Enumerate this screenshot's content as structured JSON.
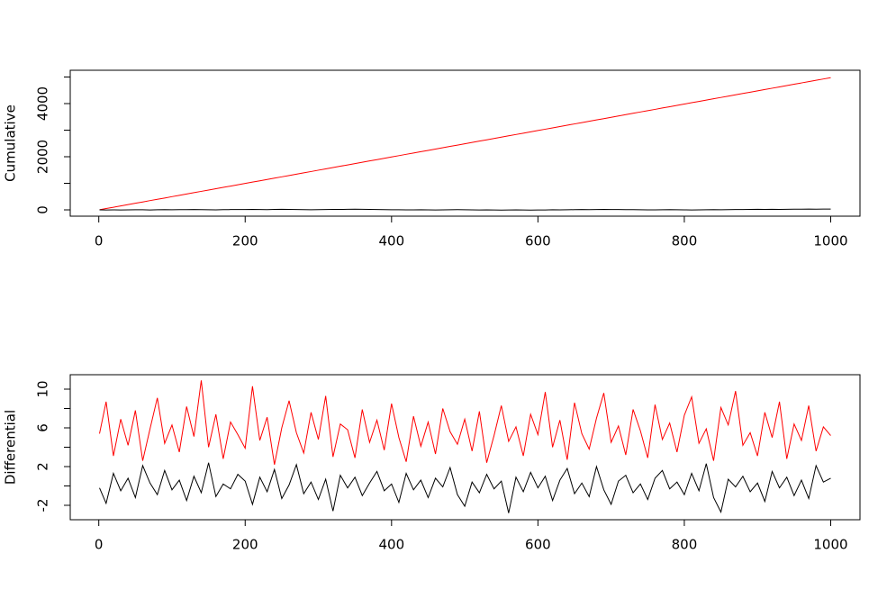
{
  "chart_data": [
    {
      "type": "line",
      "ylabel": "Cumulative",
      "x": [
        1,
        10,
        20,
        30,
        40,
        50,
        60,
        70,
        80,
        90,
        100,
        110,
        120,
        130,
        140,
        150,
        160,
        170,
        180,
        190,
        200,
        210,
        220,
        230,
        240,
        250,
        260,
        270,
        280,
        290,
        300,
        310,
        320,
        330,
        340,
        350,
        360,
        370,
        380,
        390,
        400,
        410,
        420,
        430,
        440,
        450,
        460,
        470,
        480,
        490,
        500,
        510,
        520,
        530,
        540,
        550,
        560,
        570,
        580,
        590,
        600,
        610,
        620,
        630,
        640,
        650,
        660,
        670,
        680,
        690,
        700,
        710,
        720,
        730,
        740,
        750,
        760,
        770,
        780,
        790,
        800,
        810,
        820,
        830,
        840,
        850,
        860,
        870,
        880,
        890,
        900,
        910,
        920,
        930,
        940,
        950,
        960,
        970,
        980,
        990,
        1000
      ],
      "series": [
        {
          "color": "#ff0000",
          "values": [
            5,
            50,
            99,
            148,
            199,
            249,
            297,
            350,
            399,
            447,
            498,
            547,
            596,
            647,
            697,
            745,
            796,
            846,
            895,
            944,
            995,
            1046,
            1094,
            1145,
            1194,
            1244,
            1293,
            1343,
            1393,
            1443,
            1494,
            1542,
            1593,
            1643,
            1692,
            1741,
            1793,
            1842,
            1891,
            1942,
            1991,
            2040,
            2091,
            2141,
            2190,
            2239,
            2290,
            2340,
            2389,
            2438,
            2489,
            2539,
            2588,
            2637,
            2688,
            2738,
            2787,
            2837,
            2887,
            2936,
            2986,
            3036,
            3085,
            3136,
            3186,
            3235,
            3285,
            3335,
            3384,
            3434,
            3484,
            3533,
            3583,
            3634,
            3684,
            3733,
            3782,
            3833,
            3883,
            3932,
            3982,
            4032,
            4081,
            4131,
            4181,
            4231,
            4280,
            4330,
            4380,
            4429,
            4479,
            4529,
            4578,
            4628,
            4678,
            4727,
            4777,
            4827,
            4876,
            4926,
            4976
          ]
        },
        {
          "color": "#000000",
          "values": [
            0,
            -3,
            2,
            -5,
            1,
            6,
            4,
            -2,
            3,
            8,
            5,
            10,
            7,
            12,
            9,
            4,
            2,
            7,
            11,
            15,
            13,
            18,
            14,
            10,
            16,
            20,
            17,
            12,
            8,
            5,
            9,
            14,
            19,
            16,
            21,
            25,
            22,
            18,
            14,
            10,
            6,
            3,
            -1,
            2,
            6,
            1,
            -3,
            0,
            4,
            8,
            5,
            2,
            -2,
            1,
            -4,
            -8,
            -5,
            -1,
            -6,
            -9,
            -5,
            -2,
            3,
            -1,
            4,
            8,
            12,
            9,
            14,
            18,
            15,
            11,
            7,
            10,
            6,
            2,
            -1,
            3,
            7,
            4,
            0,
            -3,
            1,
            5,
            9,
            6,
            10,
            14,
            11,
            16,
            20,
            17,
            22,
            18,
            23,
            27,
            24,
            28,
            25,
            29,
            30
          ]
        }
      ],
      "xlim": [
        -39,
        1040
      ],
      "xticks": [
        0,
        200,
        400,
        600,
        800,
        1000
      ],
      "ylim": [
        -237,
        5254
      ],
      "yticks": [
        0,
        2000,
        4000
      ],
      "yminorticks": [
        1000,
        3000,
        5000
      ]
    },
    {
      "type": "line",
      "ylabel": "Differential",
      "x": [
        1,
        10,
        20,
        30,
        40,
        50,
        60,
        70,
        80,
        90,
        100,
        110,
        120,
        130,
        140,
        150,
        160,
        170,
        180,
        190,
        200,
        210,
        220,
        230,
        240,
        250,
        260,
        270,
        280,
        290,
        300,
        310,
        320,
        330,
        340,
        350,
        360,
        370,
        380,
        390,
        400,
        410,
        420,
        430,
        440,
        450,
        460,
        470,
        480,
        490,
        500,
        510,
        520,
        530,
        540,
        550,
        560,
        570,
        580,
        590,
        600,
        610,
        620,
        630,
        640,
        650,
        660,
        670,
        680,
        690,
        700,
        710,
        720,
        730,
        740,
        750,
        760,
        770,
        780,
        790,
        800,
        810,
        820,
        830,
        840,
        850,
        860,
        870,
        880,
        890,
        900,
        910,
        920,
        930,
        940,
        950,
        960,
        970,
        980,
        990,
        1000
      ],
      "series": [
        {
          "color": "#ff0000",
          "values": [
            5.4,
            8.7,
            3.1,
            6.9,
            4.2,
            7.8,
            2.6,
            5.9,
            9.1,
            4.4,
            6.3,
            3.5,
            8.2,
            5.1,
            10.9,
            4.0,
            7.4,
            2.8,
            6.6,
            5.3,
            3.9,
            10.3,
            4.7,
            7.1,
            2.2,
            6.0,
            8.8,
            5.5,
            3.4,
            7.6,
            4.8,
            9.3,
            3.0,
            6.4,
            5.8,
            2.9,
            7.9,
            4.5,
            6.8,
            3.7,
            8.5,
            5.0,
            2.5,
            7.2,
            4.1,
            6.6,
            3.3,
            8.0,
            5.6,
            4.3,
            6.9,
            3.6,
            7.7,
            2.4,
            5.2,
            8.3,
            4.6,
            6.1,
            3.1,
            7.4,
            5.3,
            9.7,
            4.0,
            6.8,
            2.7,
            8.6,
            5.4,
            3.8,
            7.0,
            9.6,
            4.5,
            6.2,
            3.2,
            7.9,
            5.7,
            2.9,
            8.4,
            4.8,
            6.5,
            3.5,
            7.3,
            9.2,
            4.4,
            5.9,
            2.6,
            8.1,
            6.3,
            9.8,
            4.2,
            5.5,
            3.1,
            7.6,
            5.0,
            8.7,
            2.8,
            6.4,
            4.7,
            8.3,
            3.6,
            6.1,
            5.2
          ]
        },
        {
          "color": "#000000",
          "values": [
            -0.2,
            -1.8,
            1.3,
            -0.5,
            0.8,
            -1.2,
            2.1,
            0.3,
            -0.9,
            1.6,
            -0.4,
            0.6,
            -1.5,
            1.0,
            -0.7,
            2.4,
            -1.1,
            0.2,
            -0.3,
            1.2,
            0.5,
            -1.9,
            0.9,
            -0.6,
            1.7,
            -1.3,
            0.1,
            2.2,
            -0.8,
            0.4,
            -1.4,
            0.7,
            -2.6,
            1.1,
            -0.2,
            0.9,
            -1.0,
            0.3,
            1.5,
            -0.5,
            0.2,
            -1.7,
            1.3,
            -0.4,
            0.6,
            -1.2,
            0.8,
            -0.1,
            1.9,
            -0.9,
            -2.1,
            0.4,
            -0.7,
            1.2,
            -0.3,
            0.5,
            -2.8,
            0.9,
            -0.6,
            1.4,
            -0.2,
            1.0,
            -1.5,
            0.6,
            1.8,
            -0.8,
            0.3,
            -1.1,
            2.0,
            -0.4,
            -1.9,
            0.5,
            1.1,
            -0.7,
            0.2,
            -1.4,
            0.8,
            1.6,
            -0.3,
            0.4,
            -0.9,
            1.3,
            -0.5,
            2.3,
            -1.2,
            -2.7,
            0.7,
            -0.1,
            1.0,
            -0.6,
            0.3,
            -1.6,
            1.5,
            -0.2,
            0.9,
            -1.0,
            0.6,
            -1.3,
            2.1,
            0.4,
            0.8
          ]
        }
      ],
      "xlim": [
        -39,
        1040
      ],
      "xticks": [
        0,
        200,
        400,
        600,
        800,
        1000
      ],
      "ylim": [
        -3.49,
        11.49
      ],
      "yticks": [
        -2,
        2,
        6,
        10
      ],
      "yminorticks": [
        0,
        4,
        8
      ]
    }
  ]
}
